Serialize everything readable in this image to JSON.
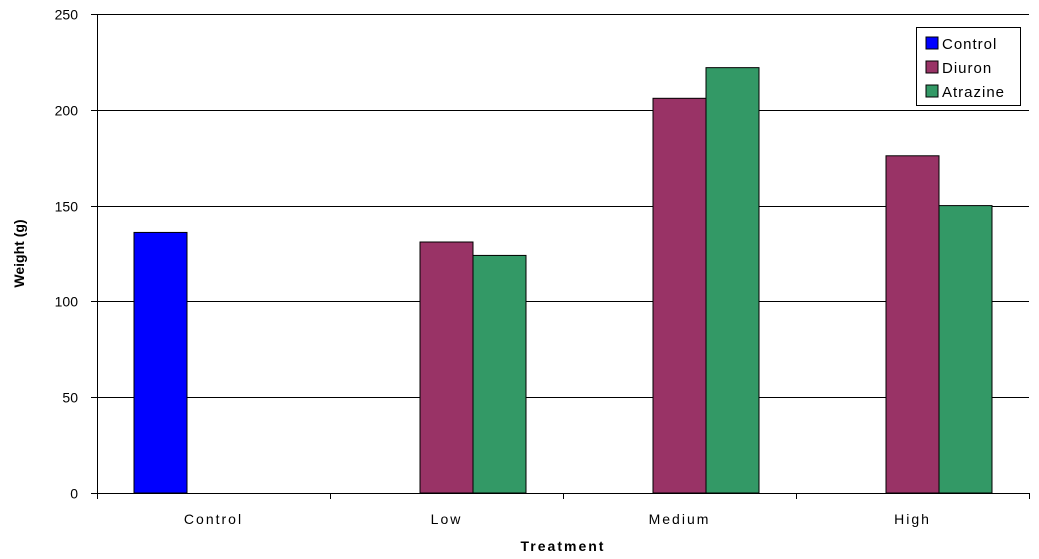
{
  "chart_data": {
    "type": "bar",
    "title": "",
    "xlabel": "Treatment",
    "ylabel": "Weight (g)",
    "ylim": [
      0,
      250
    ],
    "yticks": [
      0,
      50,
      100,
      150,
      200,
      250
    ],
    "grid": true,
    "legend_position": "top-right",
    "categories": [
      "Control",
      "Low",
      "Medium",
      "High"
    ],
    "series": [
      {
        "name": "Control",
        "color": "#0000FF",
        "values": [
          136,
          null,
          null,
          null
        ]
      },
      {
        "name": "Diuron",
        "color": "#993366",
        "values": [
          null,
          131,
          206,
          176
        ]
      },
      {
        "name": "Atrazine",
        "color": "#339966",
        "values": [
          null,
          124,
          222,
          150
        ]
      }
    ]
  }
}
